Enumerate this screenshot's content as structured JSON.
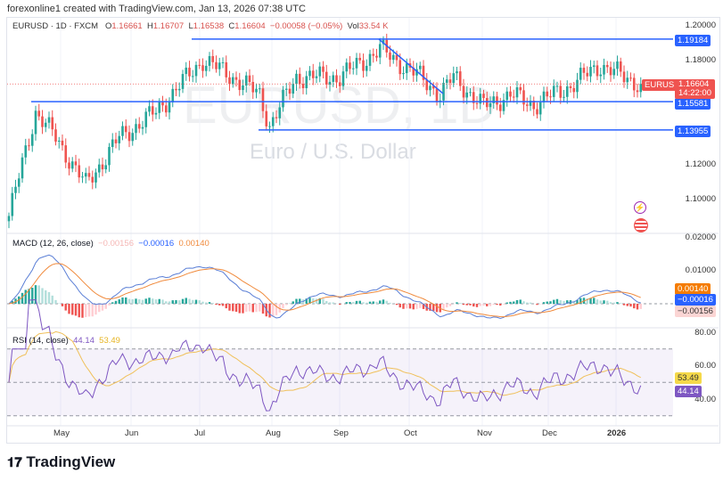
{
  "credit": "forexonline1 created with TradingView.com, Jan 13, 2026 07:38 UTC",
  "legend": {
    "symbol": "EURUSD · 1D · FXCM",
    "o_label": "O",
    "o": "1.16661",
    "h_label": "H",
    "h": "1.16707",
    "l_label": "L",
    "l": "1.16538",
    "c_label": "C",
    "c": "1.16604",
    "change": "−0.00058 (−0.05%)",
    "vol_label": "Vol",
    "vol": "33.54 K"
  },
  "watermark": {
    "title": "EURUSD, 1D",
    "subtitle": "Euro / U.S. Dollar"
  },
  "price_axis": [
    "1.20000",
    "1.18000",
    "1.12000",
    "1.10000"
  ],
  "levels": [
    {
      "label": "1.19184",
      "value": 1.19184
    },
    {
      "label": "1.15581",
      "value": 1.15581
    },
    {
      "label": "1.13955",
      "value": 1.13955
    }
  ],
  "current": {
    "symbol": "EURUSD",
    "price": "1.16604",
    "countdown": "14:22:00",
    "value": 1.16604
  },
  "macd": {
    "title": "MACD (12, 26, close)",
    "hist": "−0.00156",
    "macd": "−0.00016",
    "signal": "0.00140",
    "axis": [
      "0.02000",
      "0.01000"
    ]
  },
  "rsi": {
    "title": "RSI (14, close)",
    "rsi": "44.14",
    "ma": "53.49",
    "axis": [
      "80.00",
      "60.00",
      "40.00"
    ]
  },
  "months": [
    "May",
    "Jun",
    "Jul",
    "Aug",
    "Sep",
    "Oct",
    "Nov",
    "Dec",
    "2026"
  ],
  "colors": {
    "up": "#26a69a",
    "down": "#ef5350",
    "level": "#2962ff",
    "macd": "#5b7fd6",
    "signal": "#f08a3c",
    "rsi": "#7e57c2",
    "rsi_ma": "#f0c05a"
  },
  "chart_data": {
    "type": "candlestick",
    "price_waypoints": [
      [
        0,
        1.09
      ],
      [
        8,
        1.15
      ],
      [
        14,
        1.135
      ],
      [
        23,
        1.108
      ],
      [
        33,
        1.135
      ],
      [
        44,
        1.15
      ],
      [
        58,
        1.18
      ],
      [
        67,
        1.17
      ],
      [
        75,
        1.16
      ],
      [
        78,
        1.142
      ],
      [
        86,
        1.17
      ],
      [
        99,
        1.17
      ],
      [
        111,
        1.186
      ],
      [
        123,
        1.17
      ],
      [
        129,
        1.16
      ],
      [
        133,
        1.17
      ],
      [
        142,
        1.153
      ],
      [
        150,
        1.16
      ],
      [
        157,
        1.154
      ],
      [
        168,
        1.165
      ],
      [
        177,
        1.177
      ],
      [
        184,
        1.17
      ],
      [
        189,
        1.166
      ]
    ]
  },
  "brand": "TradingView"
}
